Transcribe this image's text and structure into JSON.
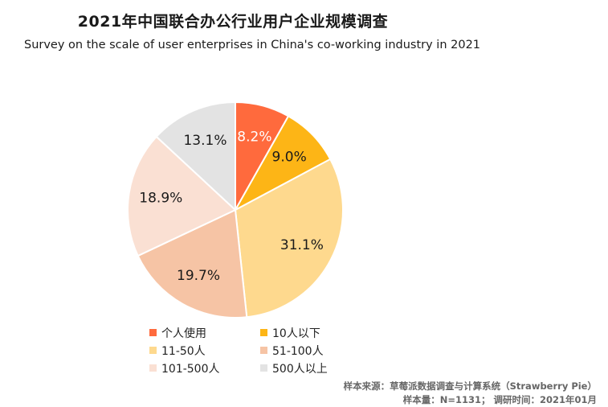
{
  "chart_data": {
    "type": "pie",
    "title": "2021年中国联合办公行业用户企业规模调查",
    "subtitle": "Survey on the scale of user enterprises in China's co-working industry in 2021",
    "categories": [
      "个人使用",
      "10人以下",
      "11-50人",
      "51-100人",
      "101-500人",
      "500人以上"
    ],
    "values": [
      8.2,
      9.0,
      31.1,
      19.7,
      18.9,
      13.1
    ],
    "labels": [
      "8.2%",
      "9.0%",
      "31.1%",
      "19.7%",
      "18.9%",
      "13.1%"
    ],
    "colors": [
      "#ff6a3d",
      "#fdb516",
      "#fed98e",
      "#f6c4a5",
      "#fae0d3",
      "#e3e3e3"
    ],
    "label_colors": [
      "#ffffff",
      "#1a1a1a",
      "#1a1a1a",
      "#1a1a1a",
      "#1a1a1a",
      "#1a1a1a"
    ],
    "legend_position": "bottom"
  },
  "source": {
    "line1": "样本来源：草莓派数据调查与计算系统（Strawberry Pie）",
    "line2": "样本量：N=1131； 调研时间：2021年01月"
  }
}
